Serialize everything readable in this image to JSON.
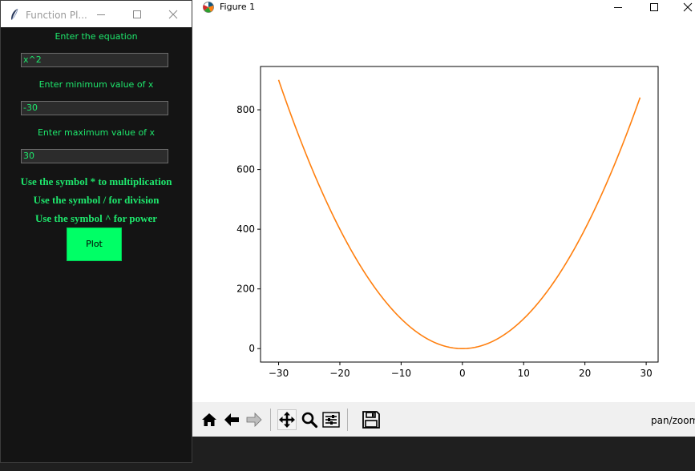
{
  "plotter": {
    "title": "Function Pl...",
    "equation_label": "Enter the equation",
    "equation_value": "x^2",
    "min_label": "Enter minimum value of x",
    "min_value": "-30",
    "max_label": "Enter maximum value of x",
    "max_value": "30",
    "hints": [
      "Use the symbol * to multiplication",
      "Use the symbol / for division",
      "Use the symbol ^ for power"
    ],
    "plot_button": "Plot",
    "colors": {
      "text": "#1ee86d",
      "button": "#00ff66",
      "background": "#141414"
    }
  },
  "figure": {
    "title": "Figure 1",
    "status": "pan/zoom",
    "toolbar": [
      "home-icon",
      "back-arrow-icon",
      "forward-arrow-icon",
      "pan-icon",
      "zoom-icon",
      "configure-subplots-icon",
      "save-icon"
    ]
  },
  "chart_data": {
    "type": "line",
    "function": "x^2",
    "series": [
      {
        "color": "#ff7f0e",
        "x": [
          -30,
          -28,
          -26,
          -24,
          -22,
          -20,
          -18,
          -16,
          -14,
          -12,
          -10,
          -8,
          -6,
          -4,
          -2,
          0,
          2,
          4,
          6,
          8,
          10,
          12,
          14,
          16,
          18,
          20,
          22,
          24,
          26,
          28,
          29
        ],
        "y": [
          900,
          784,
          676,
          576,
          484,
          400,
          324,
          256,
          196,
          144,
          100,
          64,
          36,
          16,
          4,
          0,
          4,
          16,
          36,
          64,
          100,
          144,
          196,
          256,
          324,
          400,
          484,
          576,
          676,
          784,
          841
        ]
      }
    ],
    "xlim": [
      -32.95,
      31.95
    ],
    "ylim": [
      -45,
      945
    ],
    "xticks": [
      -30,
      -20,
      -10,
      0,
      10,
      20,
      30
    ],
    "xtick_labels": [
      "−30",
      "−20",
      "−10",
      "0",
      "10",
      "20",
      "30"
    ],
    "yticks": [
      0,
      200,
      400,
      600,
      800
    ],
    "ytick_labels": [
      "0",
      "200",
      "400",
      "600",
      "800"
    ],
    "grid": false,
    "title": "",
    "xlabel": "",
    "ylabel": ""
  }
}
